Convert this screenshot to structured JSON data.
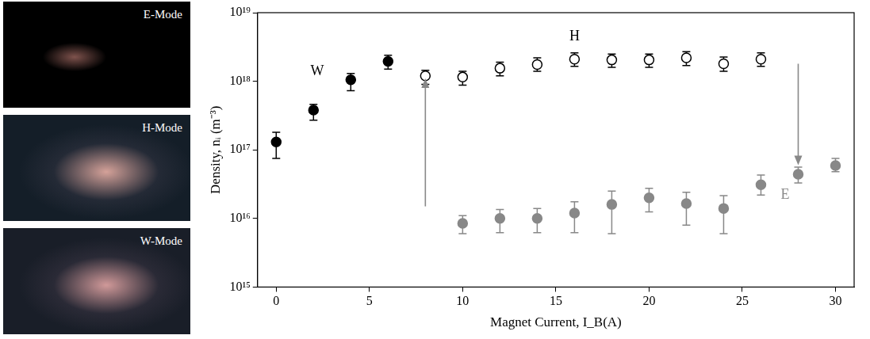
{
  "images": [
    "E-Mode",
    "H-Mode",
    "W-Mode"
  ],
  "chart_data": {
    "type": "scatter",
    "x_label": "Magnet Current, I_B(A)",
    "y_label": "Density, nᵢ (m⁻³)",
    "log": "y",
    "grid": false,
    "xlim": [
      -1,
      31
    ],
    "xticks": [
      0,
      5,
      10,
      15,
      20,
      25,
      30
    ],
    "ylim": [
      1000000000000000.0,
      1e+19
    ],
    "yticks": [
      {
        "value": 1000000000000000.0,
        "label": "10¹⁵"
      },
      {
        "value": 1e+16,
        "label": "10¹⁶"
      },
      {
        "value": 1e+17,
        "label": "10¹⁷"
      },
      {
        "value": 1e+18,
        "label": "10¹⁸"
      },
      {
        "value": 1e+19,
        "label": "10¹⁹"
      }
    ],
    "series": [
      {
        "name": "W",
        "color": "#000000",
        "marker": "filled circle",
        "label_position": {
          "x": 2.2,
          "y": 1.4e+18
        },
        "x": [
          0,
          2,
          4,
          6
        ],
        "values": [
          1.3e+17,
          3.8e+17,
          1.05e+18,
          1.95e+18
        ],
        "error_low": [
          7.5e+16,
          2.7e+17,
          7.3e+17,
          1.5e+18
        ],
        "error_high": [
          1.8e+17,
          4.6e+17,
          1.3e+18,
          2.4e+18
        ]
      },
      {
        "name": "H",
        "color": "#000000",
        "marker": "open circle",
        "label_position": {
          "x": 16,
          "y": 4.5e+18
        },
        "x": [
          8,
          10,
          12,
          14,
          16,
          18,
          20,
          22,
          24,
          26
        ],
        "values": [
          1.2e+18,
          1.15e+18,
          1.55e+18,
          1.75e+18,
          2.1e+18,
          2.05e+18,
          2.05e+18,
          2.2e+18,
          1.8e+18,
          2.1e+18
        ],
        "error_low": [
          9e+17,
          8.8e+17,
          1.2e+18,
          1.4e+18,
          1.65e+18,
          1.6e+18,
          1.6e+18,
          1.7e+18,
          1.4e+18,
          1.65e+18
        ],
        "error_high": [
          1.45e+18,
          1.4e+18,
          1.9e+18,
          2.2e+18,
          2.6e+18,
          2.5e+18,
          2.5e+18,
          2.7e+18,
          2.25e+18,
          2.6e+18
        ]
      },
      {
        "name": "E",
        "color": "#888888",
        "marker": "filled circle",
        "label_position": {
          "x": 27.3,
          "y": 2.2e+16
        },
        "x": [
          10,
          12,
          14,
          16,
          18,
          20,
          22,
          24,
          26,
          28,
          30
        ],
        "values": [
          8500000000000000.0,
          1e+16,
          1e+16,
          1.2e+16,
          1.6e+16,
          2e+16,
          1.65e+16,
          1.4e+16,
          3.1e+16,
          4.4e+16,
          5.9e+16
        ],
        "error_low": [
          6000000000000000.0,
          6200000000000000.0,
          6200000000000000.0,
          6200000000000000.0,
          6000000000000000.0,
          1.25e+16,
          8000000000000000.0,
          6000000000000000.0,
          2.2e+16,
          3.3e+16,
          4.8e+16
        ],
        "error_high": [
          1.1e+16,
          1.35e+16,
          1.4e+16,
          1.75e+16,
          2.5e+16,
          2.75e+16,
          2.4e+16,
          2.15e+16,
          4.3e+16,
          5.6e+16,
          7.5e+16
        ]
      }
    ],
    "arrows": [
      {
        "x": 8,
        "from": 1.5e+16,
        "to": 1.1e+18,
        "color": "#888888"
      },
      {
        "x": 28,
        "from": 1.8e+18,
        "to": 6e+16,
        "color": "#888888"
      }
    ]
  }
}
